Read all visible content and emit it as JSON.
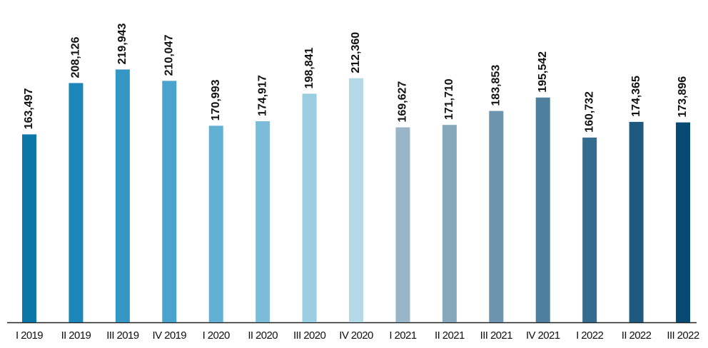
{
  "chart_data": {
    "type": "bar",
    "categories": [
      "I 2019",
      "II 2019",
      "III 2019",
      "IV 2019",
      "I 2020",
      "II 2020",
      "III 2020",
      "IV 2020",
      "I 2021",
      "II 2021",
      "III 2021",
      "IV 2021",
      "I 2022",
      "II 2022",
      "III 2022"
    ],
    "values": [
      163497,
      208126,
      219943,
      210047,
      170993,
      174917,
      198841,
      212360,
      169627,
      171710,
      183853,
      195542,
      160732,
      174365,
      173896
    ],
    "value_labels": [
      "163,497",
      "208,126",
      "219,943",
      "210,047",
      "170,993",
      "174,917",
      "198,841",
      "212,360",
      "169,627",
      "171,710",
      "183,853",
      "195,542",
      "160,732",
      "174,365",
      "173,896"
    ],
    "colors": [
      "#0a77a8",
      "#1b86b7",
      "#3496c3",
      "#4aa3cc",
      "#62b0d4",
      "#7bbcd9",
      "#9acde2",
      "#b4d9e7",
      "#98b6c8",
      "#84a7bb",
      "#6c94ae",
      "#4e7f9e",
      "#356b8e",
      "#1e5a80",
      "#074b74"
    ],
    "ylim": [
      0,
      280000
    ]
  }
}
